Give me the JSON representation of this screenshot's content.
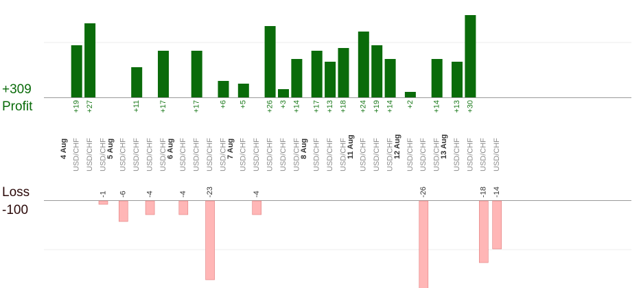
{
  "chart_data": {
    "type": "bar",
    "profit_total": "+309",
    "profit_label": "Profit",
    "loss_label": "Loss",
    "loss_total": "-100",
    "colors": {
      "profit": "#0a6b0a",
      "profit_text": "#1c7a1c",
      "loss": "#ffb6b6",
      "loss_stroke": "#e07c7c",
      "loss_text": "#333333",
      "axis": "#999999",
      "date": "#333333",
      "instrument": "#8c8c8c"
    },
    "days": [
      {
        "date": "4 Aug",
        "trades": [
          {
            "instrument": "USD/CHF",
            "profit": 19,
            "profit_label": "+19",
            "loss": null,
            "loss_label": ""
          },
          {
            "instrument": "USD/CHF",
            "profit": 27,
            "profit_label": "+27",
            "loss": null,
            "loss_label": ""
          },
          {
            "instrument": "USD/CHF",
            "profit": null,
            "profit_label": "",
            "loss": -1,
            "loss_label": "-1"
          }
        ]
      },
      {
        "date": "5 Aug",
        "trades": [
          {
            "instrument": "USD/CHF",
            "profit": null,
            "profit_label": "",
            "loss": -6,
            "loss_label": "-6"
          },
          {
            "instrument": "USD/CHF",
            "profit": 11,
            "profit_label": "+11",
            "loss": null,
            "loss_label": ""
          },
          {
            "instrument": "USD/CHF",
            "profit": null,
            "profit_label": "",
            "loss": -4,
            "loss_label": "-4"
          },
          {
            "instrument": "USD/CHF",
            "profit": 17,
            "profit_label": "+17",
            "loss": null,
            "loss_label": ""
          }
        ]
      },
      {
        "date": "6 Aug",
        "trades": [
          {
            "instrument": "USD/CHF",
            "profit": null,
            "profit_label": "",
            "loss": -4,
            "loss_label": "-4"
          },
          {
            "instrument": "USD/CHF",
            "profit": 17,
            "profit_label": "+17",
            "loss": null,
            "loss_label": ""
          },
          {
            "instrument": "USD/CHF",
            "profit": null,
            "profit_label": "",
            "loss": -23,
            "loss_label": "-23"
          },
          {
            "instrument": "USD/CHF",
            "profit": 6,
            "profit_label": "+6",
            "loss": null,
            "loss_label": ""
          }
        ]
      },
      {
        "date": "7 Aug",
        "trades": [
          {
            "instrument": "USD/CHF",
            "profit": 5,
            "profit_label": "+5",
            "loss": null,
            "loss_label": ""
          },
          {
            "instrument": "USD/CHF",
            "profit": null,
            "profit_label": "",
            "loss": -4,
            "loss_label": "-4"
          },
          {
            "instrument": "USD/CHF",
            "profit": 26,
            "profit_label": "+26",
            "loss": null,
            "loss_label": ""
          },
          {
            "instrument": "USD/CHF",
            "profit": 3,
            "profit_label": "+3",
            "loss": null,
            "loss_label": ""
          },
          {
            "instrument": "USD/CHF",
            "profit": 14,
            "profit_label": "+14",
            "loss": null,
            "loss_label": ""
          }
        ]
      },
      {
        "date": "8 Aug",
        "trades": [
          {
            "instrument": "USD/CHF",
            "profit": 17,
            "profit_label": "+17",
            "loss": null,
            "loss_label": ""
          },
          {
            "instrument": "USD/CHF",
            "profit": 13,
            "profit_label": "+13",
            "loss": null,
            "loss_label": ""
          },
          {
            "instrument": "USD/CHF",
            "profit": 18,
            "profit_label": "+18",
            "loss": null,
            "loss_label": ""
          }
        ]
      },
      {
        "date": "11 Aug",
        "trades": [
          {
            "instrument": "USD/CHF",
            "profit": 24,
            "profit_label": "+24",
            "loss": null,
            "loss_label": ""
          },
          {
            "instrument": "USD/CHF",
            "profit": 19,
            "profit_label": "+19",
            "loss": null,
            "loss_label": ""
          },
          {
            "instrument": "USD/CHF",
            "profit": 14,
            "profit_label": "+14",
            "loss": null,
            "loss_label": ""
          }
        ]
      },
      {
        "date": "12 Aug",
        "trades": [
          {
            "instrument": "USD/CHF",
            "profit": 2,
            "profit_label": "+2",
            "loss": null,
            "loss_label": ""
          },
          {
            "instrument": "USD/CHF",
            "profit": null,
            "profit_label": "",
            "loss": -26,
            "loss_label": "-26"
          },
          {
            "instrument": "USD/CHF",
            "profit": 14,
            "profit_label": "+14",
            "loss": null,
            "loss_label": ""
          }
        ]
      },
      {
        "date": "13 Aug",
        "trades": [
          {
            "instrument": "USD/CHF",
            "profit": 13,
            "profit_label": "+13",
            "loss": null,
            "loss_label": ""
          },
          {
            "instrument": "USD/CHF",
            "profit": 30,
            "profit_label": "+30",
            "loss": null,
            "loss_label": ""
          },
          {
            "instrument": "USD/CHF",
            "profit": null,
            "profit_label": "",
            "loss": -18,
            "loss_label": "-18"
          },
          {
            "instrument": "USD/CHF",
            "profit": null,
            "profit_label": "",
            "loss": -14,
            "loss_label": "-14"
          }
        ]
      }
    ]
  }
}
